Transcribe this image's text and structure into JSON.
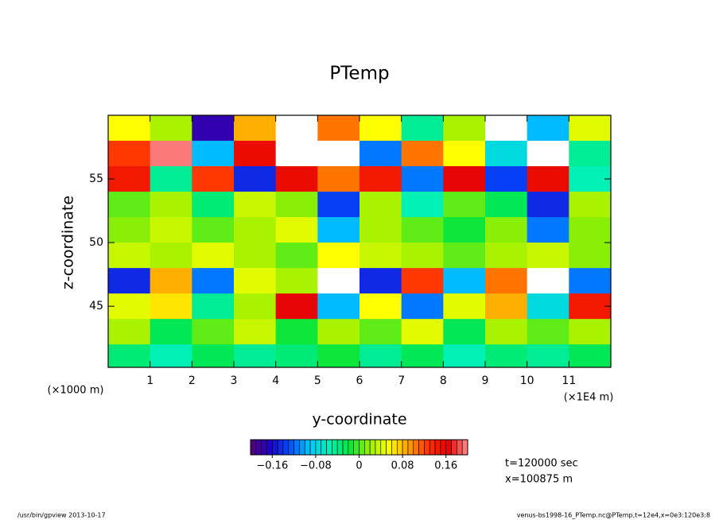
{
  "chart_data": {
    "type": "contour",
    "title": "PTemp",
    "xlabel": "y-coordinate",
    "ylabel": "z-coordinate",
    "xunit": "(×1E4 m)",
    "yunit": "(×1000 m)",
    "xlim": [
      0,
      12
    ],
    "ylim": [
      40.2,
      60
    ],
    "xticks": [
      1,
      2,
      3,
      4,
      5,
      6,
      7,
      8,
      9,
      10,
      11
    ],
    "yticks": [
      45,
      50,
      55
    ],
    "x": [
      0.5,
      1.5,
      2.5,
      3.5,
      4.5,
      5.5,
      6.5,
      7.5,
      8.5,
      9.5,
      10.5,
      11.5
    ],
    "z": [
      59,
      57,
      55,
      53,
      51,
      49,
      47,
      45,
      43,
      41
    ],
    "values": [
      [
        0.05,
        0.02,
        -0.18,
        0.08,
        0.25,
        0.1,
        0.05,
        -0.05,
        0.02,
        0.22,
        -0.1,
        0.04
      ],
      [
        0.12,
        0.2,
        -0.1,
        0.15,
        0.25,
        0.25,
        -0.12,
        0.1,
        0.05,
        -0.08,
        0.22,
        -0.05
      ],
      [
        0.14,
        -0.05,
        0.12,
        -0.15,
        0.15,
        0.1,
        0.14,
        -0.12,
        0.16,
        -0.14,
        0.15,
        -0.06
      ],
      [
        0.0,
        0.02,
        -0.04,
        0.03,
        0.01,
        -0.14,
        0.02,
        -0.06,
        0.0,
        -0.03,
        -0.15,
        0.02
      ],
      [
        0.01,
        0.03,
        0.0,
        0.02,
        0.04,
        -0.1,
        0.02,
        0.0,
        -0.02,
        0.01,
        -0.12,
        0.01
      ],
      [
        0.03,
        0.02,
        0.04,
        0.02,
        0.0,
        0.05,
        0.03,
        0.02,
        0.0,
        0.02,
        0.03,
        0.01
      ],
      [
        -0.15,
        0.08,
        -0.12,
        0.04,
        0.02,
        0.23,
        -0.15,
        0.12,
        -0.1,
        0.1,
        0.22,
        -0.12
      ],
      [
        0.04,
        0.06,
        -0.05,
        0.02,
        0.16,
        -0.1,
        0.05,
        -0.12,
        0.04,
        0.08,
        -0.08,
        0.14
      ],
      [
        0.02,
        -0.03,
        0.0,
        0.03,
        -0.02,
        0.02,
        0.0,
        0.04,
        -0.03,
        0.02,
        0.0,
        0.02
      ],
      [
        -0.04,
        -0.06,
        -0.03,
        -0.05,
        -0.04,
        -0.02,
        -0.05,
        -0.03,
        -0.06,
        -0.04,
        -0.05,
        -0.03
      ]
    ],
    "colorbar": {
      "range": [
        -0.2,
        0.2
      ],
      "step": 0.01,
      "ticks": [
        {
          "value": -0.16,
          "label": "−0.16"
        },
        {
          "value": -0.08,
          "label": "−0.08"
        },
        0,
        0.08,
        0.16
      ],
      "colors": [
        "#5a0078",
        "#1e00c8",
        "#0050ff",
        "#00c8ff",
        "#00f0b4",
        "#00e640",
        "#96f000",
        "#ffff00",
        "#ffa000",
        "#ff3000",
        "#e60000",
        "#ff8c8c"
      ],
      "above_color": "#ffffff"
    },
    "annotations": [
      "t=120000 sec",
      "x=100875 m"
    ],
    "footer_left": "/usr/bin/gpview  2013-10-17",
    "footer_right": "venus-bs1998-16_PTemp.nc@PTemp,t=12e4,x=0e3:120e3:8"
  }
}
